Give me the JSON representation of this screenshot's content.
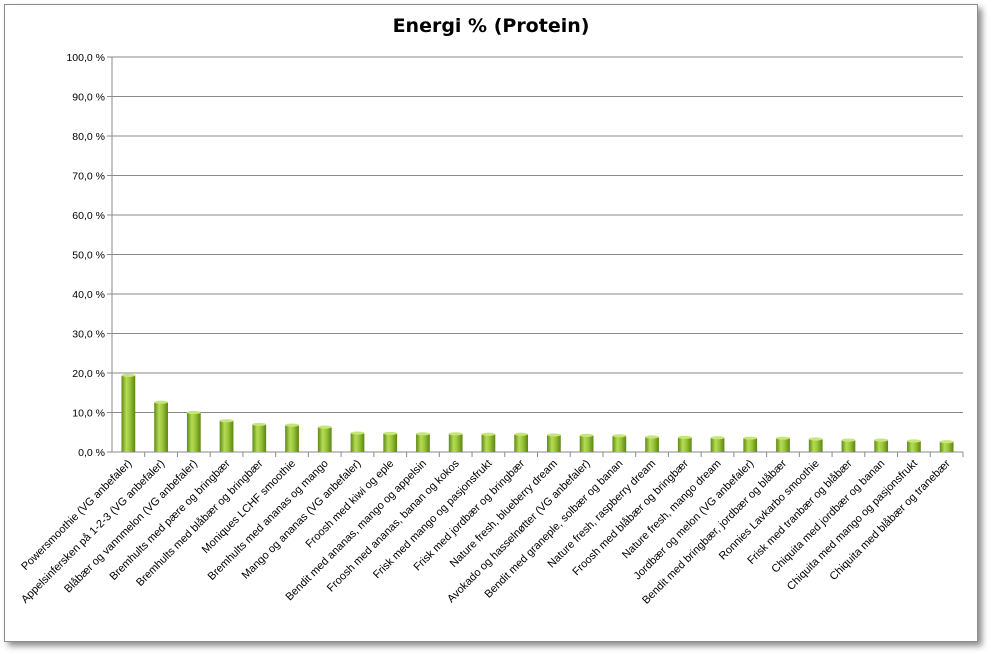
{
  "chart_data": {
    "type": "bar",
    "title": "Energi % (Protein)",
    "xlabel": "",
    "ylabel": "",
    "ylim": [
      0,
      100
    ],
    "yticks": [
      "0,0 %",
      "10,0 %",
      "20,0 %",
      "30,0 %",
      "40,0 %",
      "50,0 %",
      "60,0 %",
      "70,0 %",
      "80,0 %",
      "90,0 %",
      "100,0 %"
    ],
    "grid": true,
    "legend": "none",
    "bar_color": "#8dbb2c",
    "categories": [
      "Powersmoothie (VG anbefaler)",
      "Appelsinfersken på 1-2-3 (VG anbefaler)",
      "Blåbær og vannmelon (VG anbefaler)",
      "Bremhults med pære og bringbær",
      "Bremhults med blåbær og bringbær",
      "Moniques LCHF smoothie",
      "Bremhults med ananas og mango",
      "Mango og ananas (VG anbefaler)",
      "Froosh med kiwi og eple",
      "Bendit med ananas, mango og appelsin",
      "Froosh med ananas, banan og kokos",
      "Frisk med mango og pasjonsfrukt",
      "Frisk med jordbær og bringbær",
      "Nature fresh, blueberry dream",
      "Avokado og hasselnøtter (VG anbefaler)",
      "Bendit med graneple, solbær og banan",
      "Nature fresh, raspberry dream",
      "Froosh med blåbær og bringbær",
      "Nature fresh, mango dream",
      "Jordbær og melon (VG anbefaler)",
      "Bendit med bringbær, jordbær og blåbær",
      "Ronnies Lavkarbo smoothie",
      "Frisk med tranbær og blåbær",
      "Chiquita med jordbær og banan",
      "Chiquita med mango og pasjonsfrukt",
      "Chiquita med blåbær og tranebær"
    ],
    "values": [
      19.4,
      12.6,
      10.0,
      7.9,
      7.0,
      6.8,
      6.3,
      4.8,
      4.7,
      4.6,
      4.6,
      4.5,
      4.5,
      4.3,
      4.2,
      4.1,
      3.8,
      3.7,
      3.6,
      3.5,
      3.5,
      3.3,
      3.0,
      3.0,
      2.8,
      2.6
    ]
  }
}
